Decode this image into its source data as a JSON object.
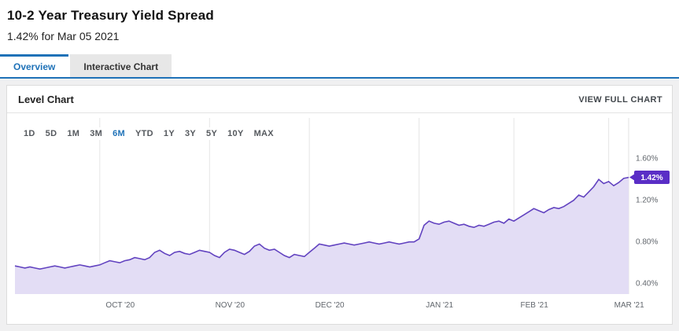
{
  "header": {
    "title": "10-2 Year Treasury Yield Spread",
    "subtitle": "1.42% for Mar 05 2021"
  },
  "tabs": [
    {
      "label": "Overview",
      "active": true
    },
    {
      "label": "Interactive Chart",
      "active": false
    }
  ],
  "panel": {
    "title": "Level Chart",
    "view_full_chart": "VIEW FULL CHART"
  },
  "range_selector": {
    "options": [
      "1D",
      "5D",
      "1M",
      "3M",
      "6M",
      "YTD",
      "1Y",
      "3Y",
      "5Y",
      "10Y",
      "MAX"
    ],
    "active": "6M"
  },
  "colors": {
    "accent_blue": "#1f72b8",
    "chart_line": "#6243c0",
    "chart_fill": "#e3ddf5",
    "badge": "#5a2ec6"
  },
  "chart_data": {
    "type": "area",
    "title": "10-2 Year Treasury Yield Spread, 6M range",
    "unit": "%",
    "ylim": [
      0.3,
      1.99
    ],
    "yticks": [
      0.4,
      0.8,
      1.2,
      1.6
    ],
    "ytick_labels": [
      "0.40%",
      "0.80%",
      "1.20%",
      "1.60%"
    ],
    "x_labels": [
      "OCT '20",
      "NOV '20",
      "DEC '20",
      "JAN '21",
      "FEB '21",
      "MAR '21"
    ],
    "month_start_indices": [
      17,
      39,
      59,
      81,
      100,
      119
    ],
    "last_value": 1.42,
    "last_value_label": "1.42%",
    "legend": "off",
    "grid": "vertical-only",
    "colors": {
      "line": "#6243c0",
      "fill": "#e3ddf5",
      "badge": "#5a2ec6"
    },
    "values": [
      0.57,
      0.56,
      0.55,
      0.56,
      0.55,
      0.54,
      0.55,
      0.56,
      0.57,
      0.56,
      0.55,
      0.56,
      0.57,
      0.58,
      0.57,
      0.56,
      0.57,
      0.58,
      0.6,
      0.62,
      0.61,
      0.6,
      0.62,
      0.63,
      0.65,
      0.64,
      0.63,
      0.65,
      0.7,
      0.72,
      0.69,
      0.67,
      0.7,
      0.71,
      0.69,
      0.68,
      0.7,
      0.72,
      0.71,
      0.7,
      0.67,
      0.65,
      0.7,
      0.73,
      0.72,
      0.7,
      0.68,
      0.71,
      0.76,
      0.78,
      0.74,
      0.72,
      0.73,
      0.7,
      0.67,
      0.65,
      0.68,
      0.67,
      0.66,
      0.7,
      0.74,
      0.78,
      0.77,
      0.76,
      0.77,
      0.78,
      0.79,
      0.78,
      0.77,
      0.78,
      0.79,
      0.8,
      0.79,
      0.78,
      0.79,
      0.8,
      0.79,
      0.78,
      0.79,
      0.8,
      0.8,
      0.83,
      0.96,
      1.0,
      0.98,
      0.97,
      0.99,
      1.0,
      0.98,
      0.96,
      0.97,
      0.95,
      0.94,
      0.96,
      0.95,
      0.97,
      0.99,
      1.0,
      0.98,
      1.02,
      1.0,
      1.03,
      1.06,
      1.09,
      1.12,
      1.1,
      1.08,
      1.11,
      1.13,
      1.12,
      1.14,
      1.17,
      1.2,
      1.25,
      1.23,
      1.28,
      1.33,
      1.4,
      1.36,
      1.38,
      1.34,
      1.37,
      1.41,
      1.42
    ]
  }
}
